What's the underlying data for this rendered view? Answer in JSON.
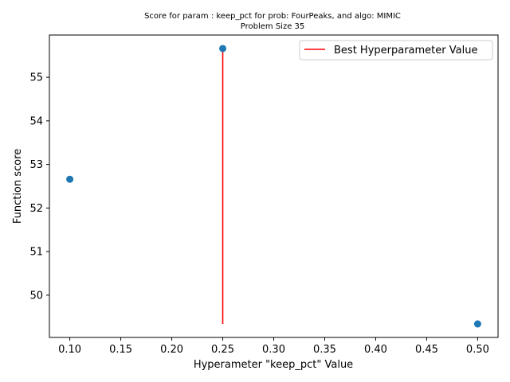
{
  "chart_data": {
    "type": "scatter",
    "title": "Score for param : keep_pct for prob: FourPeaks, and algo: MIMIC",
    "subtitle": "Problem Size 35",
    "xlabel": "Hyperameter \"keep_pct\" Value",
    "ylabel": "Function score",
    "xlim": [
      0.08,
      0.52
    ],
    "ylim": [
      49.03,
      55.97
    ],
    "xticks": [
      "0.10",
      "0.15",
      "0.20",
      "0.25",
      "0.30",
      "0.35",
      "0.40",
      "0.45",
      "0.50"
    ],
    "yticks": [
      "50",
      "51",
      "52",
      "53",
      "54",
      "55"
    ],
    "grid": false,
    "legend_position": "upper-right",
    "points": {
      "x": [
        0.1,
        0.25,
        0.5
      ],
      "y": [
        52.66,
        55.66,
        49.34
      ],
      "color": "#1f77b4"
    },
    "best_line": {
      "name": "Best Hyperparameter Value",
      "x": 0.25,
      "y_from": 49.34,
      "y_to": 55.66,
      "color": "#ff0000"
    }
  }
}
